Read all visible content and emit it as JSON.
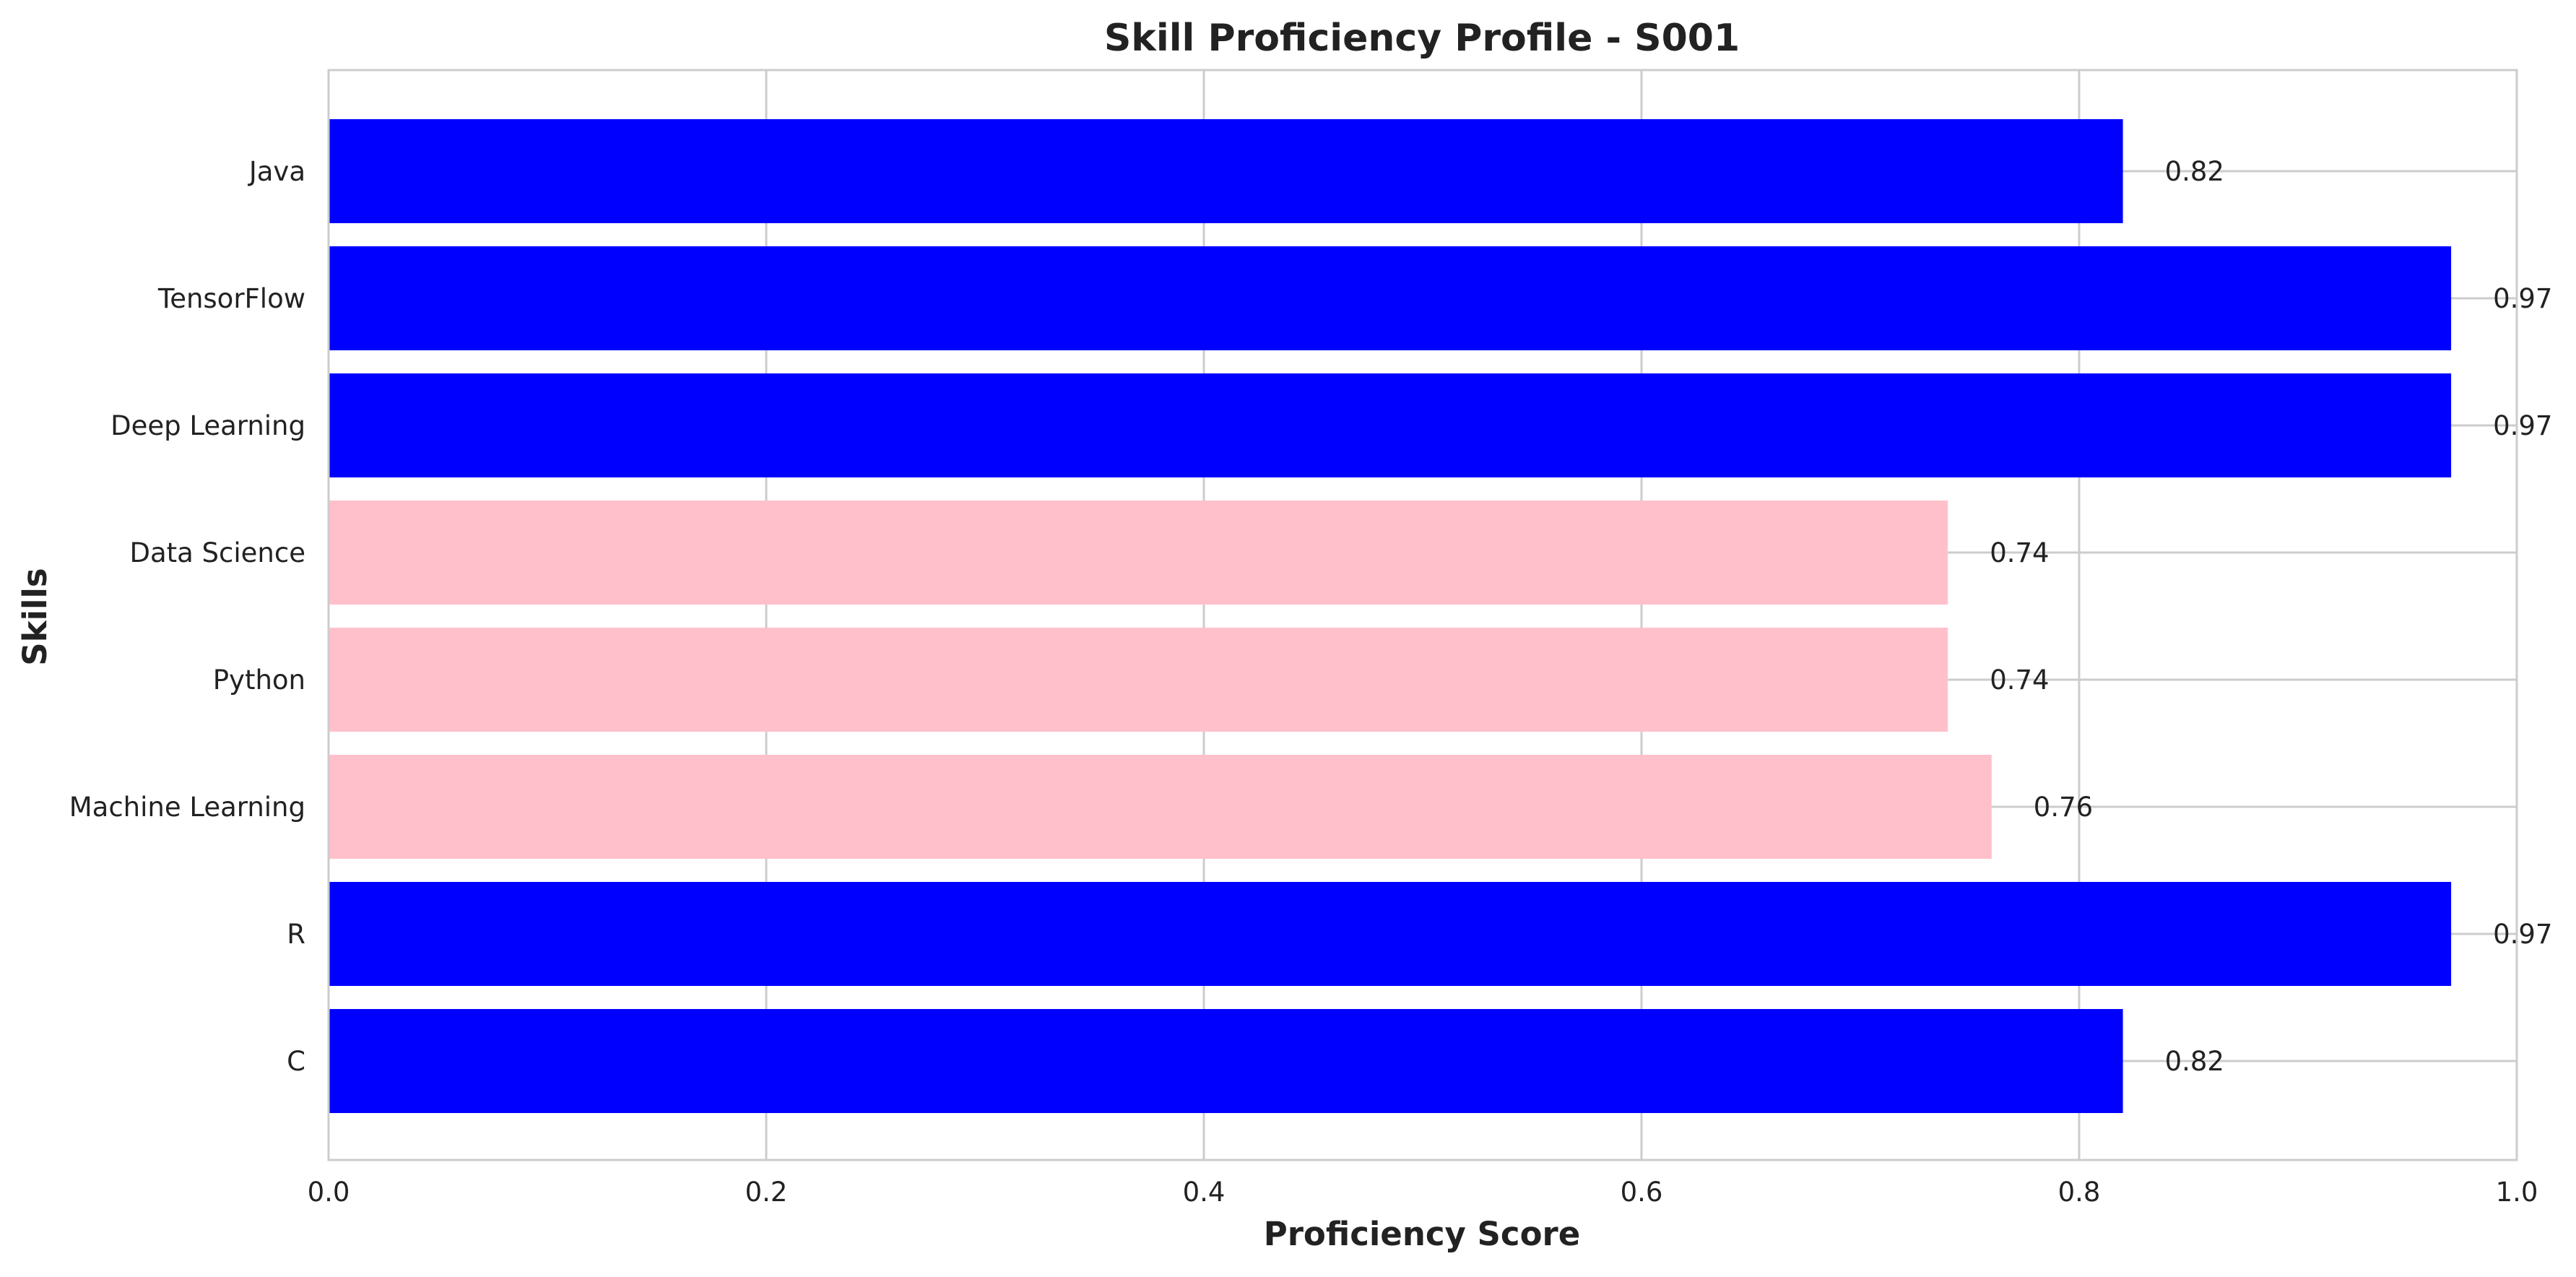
{
  "chart_data": {
    "type": "bar",
    "orientation": "horizontal",
    "title": "Skill Proficiency Profile - S001",
    "xlabel": "Proficiency Score",
    "ylabel": "Skills",
    "xlim": [
      0,
      1.0
    ],
    "xticks": [
      "0.0",
      "0.2",
      "0.4",
      "0.6",
      "0.8",
      "1.0"
    ],
    "grid": true,
    "categories": [
      "C",
      "R",
      "Machine Learning",
      "Python",
      "Data Science",
      "Deep Learning",
      "TensorFlow",
      "Java"
    ],
    "values": [
      0.82,
      0.97,
      0.76,
      0.74,
      0.74,
      0.97,
      0.97,
      0.82
    ],
    "value_labels": [
      "0.82",
      "0.97",
      "0.76",
      "0.74",
      "0.74",
      "0.97",
      "0.97",
      "0.82"
    ],
    "bar_colors": [
      "#0000ff",
      "#0000ff",
      "#ffc0cb",
      "#ffc0cb",
      "#ffc0cb",
      "#0000ff",
      "#0000ff",
      "#0000ff"
    ]
  }
}
